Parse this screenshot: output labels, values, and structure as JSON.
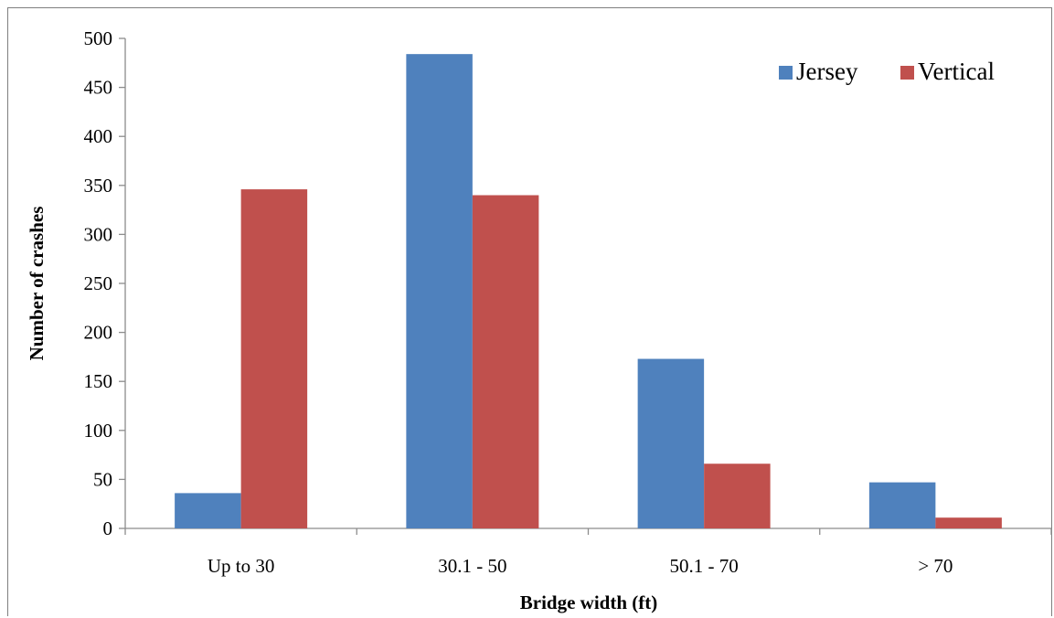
{
  "chart_data": {
    "type": "bar",
    "categories": [
      "Up to 30",
      "30.1 - 50",
      "50.1 - 70",
      "> 70"
    ],
    "series": [
      {
        "name": "Jersey",
        "values": [
          36,
          484,
          173,
          47
        ],
        "color": "#4f81bd"
      },
      {
        "name": "Vertical",
        "values": [
          346,
          340,
          66,
          11
        ],
        "color": "#c0504d"
      }
    ],
    "xlabel": "Bridge width (ft)",
    "ylabel": "Number of crashes",
    "ylim": [
      0,
      500
    ],
    "yticks": [
      "0",
      "50",
      "100",
      "150",
      "200",
      "250",
      "300",
      "350",
      "400",
      "450",
      "500"
    ],
    "grid": false,
    "legend_position": "top-right"
  }
}
